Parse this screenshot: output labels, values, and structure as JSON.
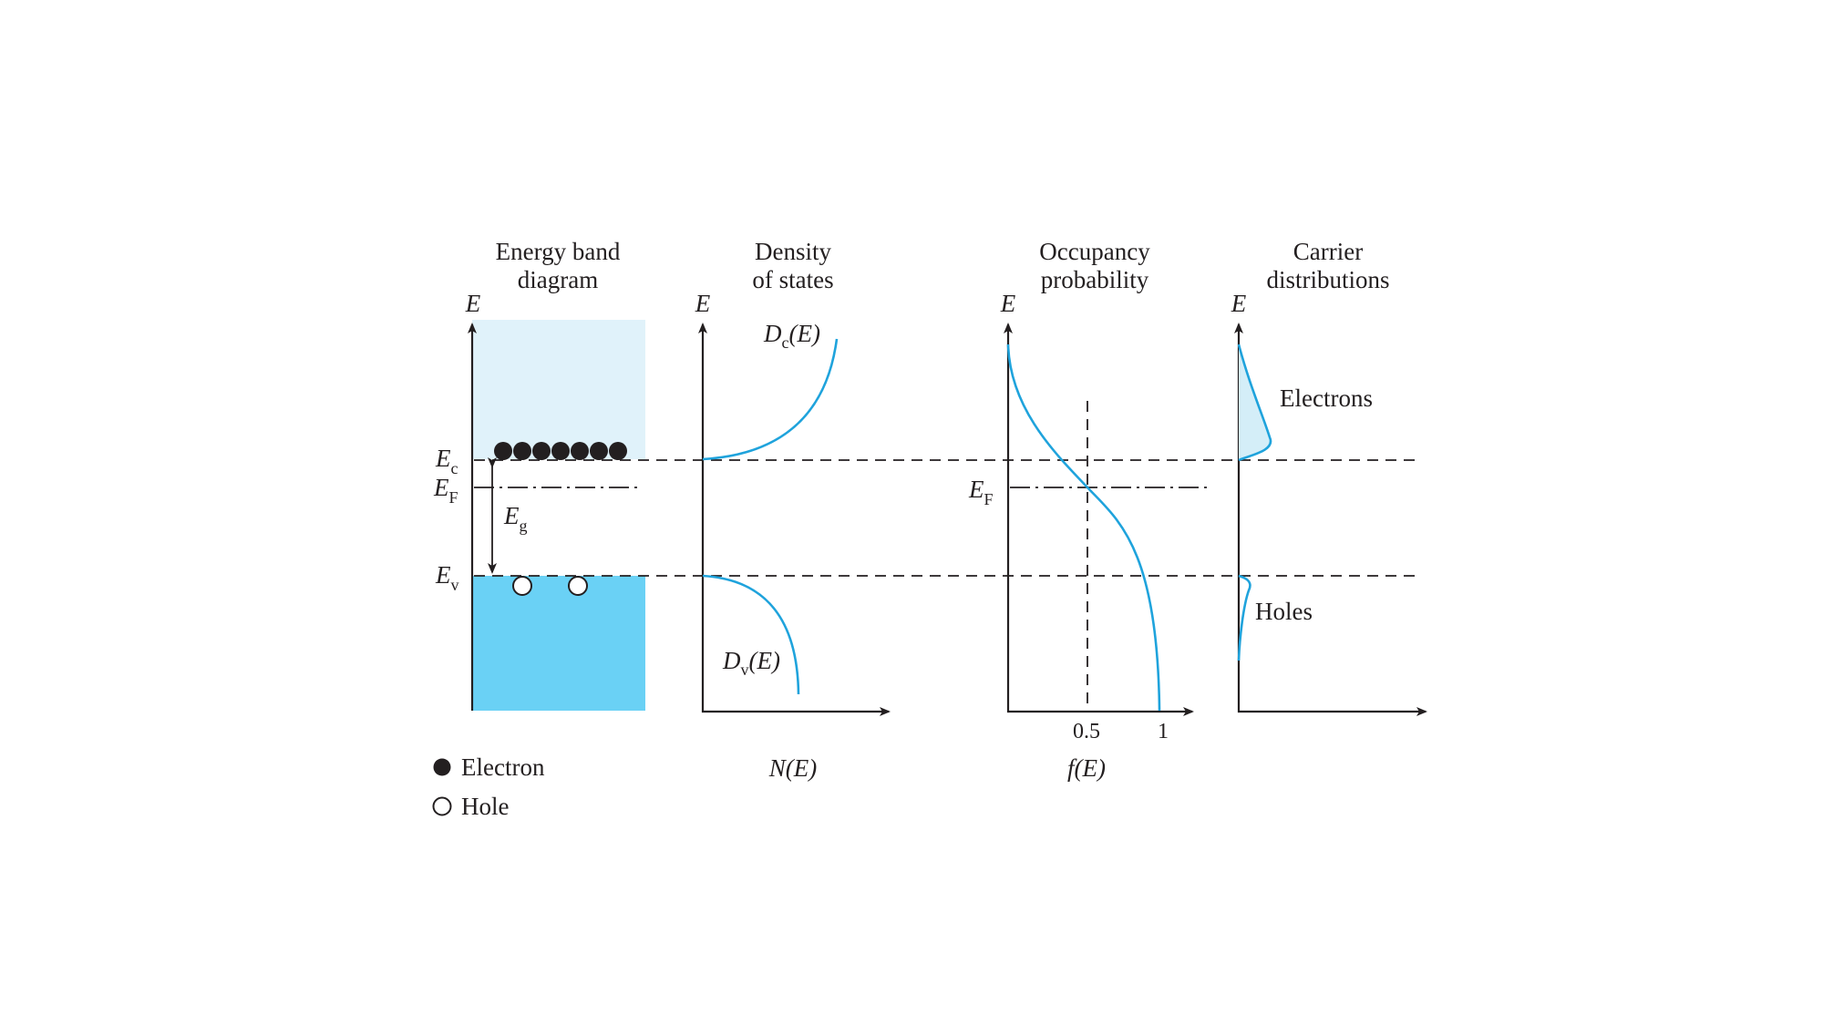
{
  "colors": {
    "conduction_band": "#e0f2fa",
    "valence_band": "#6ad1f5",
    "curve": "#1fa3dc",
    "ink": "#231f20",
    "electron_tail_fill": "#d4eef8"
  },
  "panels": {
    "band": {
      "title_line1": "Energy band",
      "title_line2": "diagram",
      "axis_label": "E"
    },
    "dos": {
      "title_line1": "Density",
      "title_line2": "of states",
      "axis_label": "E",
      "x_label": "N(E)",
      "dc_label": "D",
      "dc_sub": "c",
      "dc_arg": "(E)",
      "dv_label": "D",
      "dv_sub": "v",
      "dv_arg": "(E)"
    },
    "occupancy": {
      "title_line1": "Occupancy",
      "title_line2": "probability",
      "axis_label": "E",
      "x_label": "f(E)",
      "tick_half": "0.5",
      "tick_one": "1",
      "ef_label": "E",
      "ef_sub": "F"
    },
    "carrier": {
      "title_line1": "Carrier",
      "title_line2": "distributions",
      "axis_label": "E",
      "electrons_label": "Electrons",
      "holes_label": "Holes"
    }
  },
  "levels": {
    "ec": {
      "main": "E",
      "sub": "c"
    },
    "ef": {
      "main": "E",
      "sub": "F"
    },
    "ev": {
      "main": "E",
      "sub": "v"
    },
    "eg": {
      "main": "E",
      "sub": "g"
    }
  },
  "legend": {
    "electron": "Electron",
    "hole": "Hole"
  },
  "band_particles": {
    "electrons": 7,
    "holes": 2
  }
}
